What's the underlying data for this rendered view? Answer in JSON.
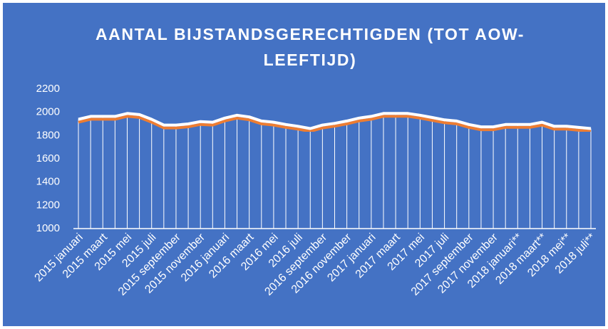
{
  "chart_data": {
    "type": "line",
    "title": "AANTAL BIJSTANDSGERECHTIGDEN (TOT AOW-LEEFTIJD)",
    "categories": [
      "2015 januari",
      null,
      "2015 maart",
      null,
      "2015 mei",
      null,
      "2015 juli",
      null,
      "2015 september",
      null,
      "2015 november",
      null,
      "2016 januari",
      null,
      "2016 maart",
      null,
      "2016 mei",
      null,
      "2016 juli",
      null,
      "2016 september",
      null,
      "2016 november",
      null,
      "2017 januari",
      null,
      "2017 maart",
      null,
      "2017 mei",
      null,
      "2017 juli",
      null,
      "2017 september",
      null,
      "2017 november",
      null,
      "2018 januari**",
      null,
      "2018 maart**",
      null,
      "2018 mei**",
      null,
      "2018 juli**"
    ],
    "values": [
      1940,
      1965,
      1965,
      1965,
      1990,
      1980,
      1940,
      1890,
      1890,
      1900,
      1920,
      1915,
      1950,
      1975,
      1960,
      1925,
      1915,
      1895,
      1880,
      1860,
      1890,
      1905,
      1925,
      1950,
      1965,
      1990,
      1990,
      1990,
      1975,
      1955,
      1935,
      1925,
      1895,
      1875,
      1875,
      1895,
      1895,
      1895,
      1915,
      1880,
      1880,
      1870,
      1860
    ],
    "color": "#ffffff",
    "ylim": [
      1000,
      2200
    ],
    "yticks": [
      1000,
      1200,
      1400,
      1600,
      1800,
      2000,
      2200
    ],
    "drop_lines": true
  }
}
